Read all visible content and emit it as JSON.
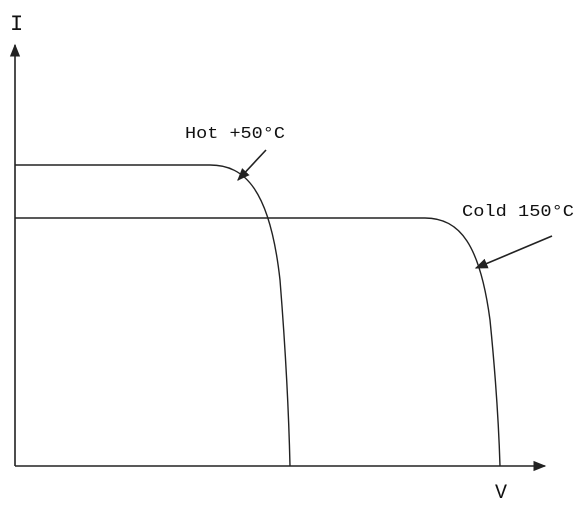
{
  "axes": {
    "y_label": "I",
    "x_label": "V"
  },
  "curves": [
    {
      "label": "Hot +50°C"
    },
    {
      "label": "Cold 150°C"
    }
  ]
}
